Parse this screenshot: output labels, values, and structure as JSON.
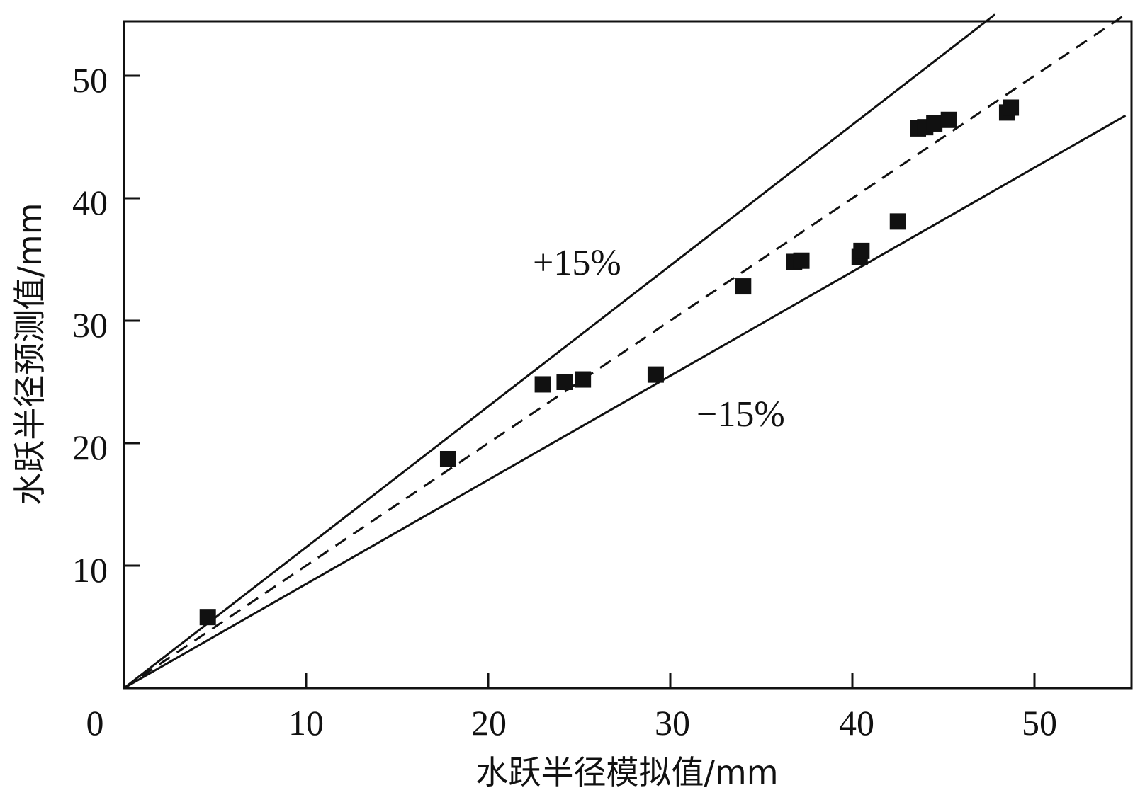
{
  "chart_data": {
    "type": "scatter",
    "title": "",
    "xlabel": "水跃半径模拟值/mm",
    "ylabel": "水跃半径预测值/mm",
    "xlim": [
      0,
      55
    ],
    "ylim": [
      0,
      55
    ],
    "x_ticks": [
      0,
      10,
      20,
      30,
      40,
      50
    ],
    "y_ticks": [
      10,
      20,
      30,
      40,
      50
    ],
    "x_tick_labels": [
      "0",
      "10",
      "20",
      "30",
      "40",
      "50"
    ],
    "y_tick_labels": [
      "10",
      "20",
      "30",
      "40",
      "50"
    ],
    "grid": false,
    "series": [
      {
        "name": "data",
        "marker": "square",
        "x": [
          4.6,
          17.8,
          23.0,
          24.2,
          25.2,
          29.2,
          34.0,
          36.8,
          37.2,
          40.4,
          40.5,
          42.5,
          43.6,
          44.0,
          44.5,
          45.3,
          48.5,
          48.7
        ],
        "y": [
          5.8,
          18.7,
          24.8,
          25.0,
          25.2,
          25.6,
          32.8,
          34.8,
          34.9,
          35.2,
          35.7,
          38.1,
          45.7,
          45.8,
          46.1,
          46.4,
          47.0,
          47.4
        ]
      }
    ],
    "reference_lines": [
      {
        "name": "y=x",
        "slope": 1.0,
        "style": "dashed"
      },
      {
        "name": "+15%",
        "slope": 1.15,
        "style": "solid"
      },
      {
        "name": "-15%",
        "slope": 0.85,
        "style": "solid"
      }
    ],
    "annotations": [
      {
        "text": "+15%",
        "x": 22.0,
        "y": 34.0
      },
      {
        "text": "−15%",
        "x": 31.0,
        "y": 21.5
      }
    ]
  }
}
